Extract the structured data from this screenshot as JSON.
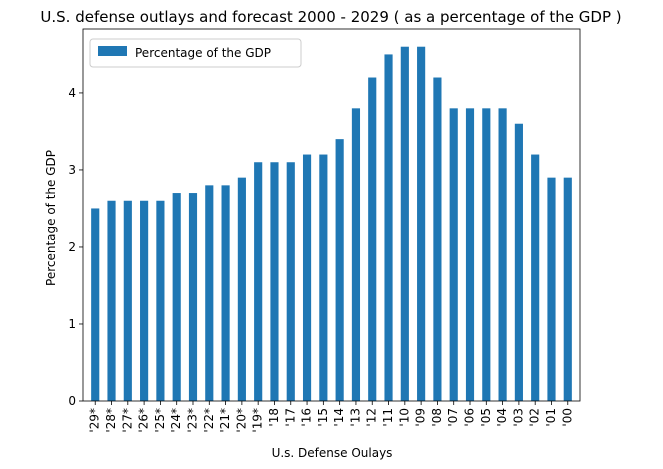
{
  "chart_data": {
    "type": "bar",
    "title": "U.S. defense outlays and forecast 2000 - 2029 ( as a percentage of the GDP )",
    "xlabel": "U.s. Defense Oulays",
    "ylabel": "Percentage of the GDP",
    "categories": [
      "'29*",
      "'28*",
      "'27*",
      "'26*",
      "'25*",
      "'24*",
      "'23*",
      "'22*",
      "'21*",
      "'20*",
      "'19*",
      "'18",
      "'17",
      "'16",
      "'15",
      "'14",
      "'13",
      "'12",
      "'11",
      "'10",
      "'09",
      "'08",
      "'07",
      "'06",
      "'05",
      "'04",
      "'03",
      "'02",
      "'01",
      "'00"
    ],
    "series": [
      {
        "name": "Percentage of the GDP",
        "color": "#1f77b4",
        "values": [
          2.5,
          2.6,
          2.6,
          2.6,
          2.6,
          2.7,
          2.7,
          2.8,
          2.8,
          2.9,
          3.1,
          3.1,
          3.1,
          3.2,
          3.2,
          3.4,
          3.8,
          4.2,
          4.5,
          4.6,
          4.6,
          4.2,
          3.8,
          3.8,
          3.8,
          3.8,
          3.6,
          3.2,
          2.9,
          2.9
        ]
      }
    ],
    "ylim": [
      0,
      4.83
    ],
    "yticks": [
      0,
      1,
      2,
      3,
      4
    ],
    "ytick_labels": [
      "0",
      "1",
      "2",
      "3",
      "4"
    ],
    "grid": false,
    "legend": "top-left"
  }
}
